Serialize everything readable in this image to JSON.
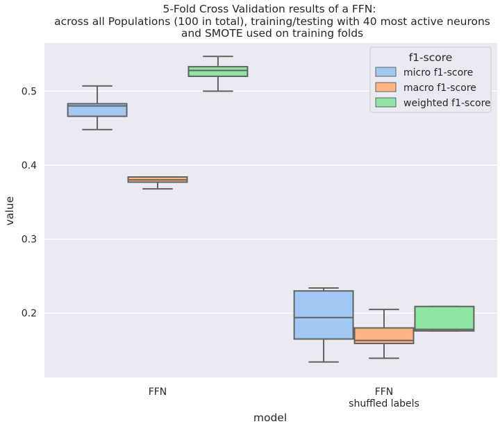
{
  "chart_data": {
    "type": "boxplot",
    "title": [
      "5-Fold Cross Validation results of a FFN:",
      "across all Populations (100 in total), training/testing with 40 most active neurons",
      "and SMOTE used on training folds"
    ],
    "xlabel": "model",
    "ylabel": "value",
    "ylim": [
      0.113,
      0.565
    ],
    "yticks": [
      0.2,
      0.3,
      0.4,
      0.5
    ],
    "ytick_labels": [
      "0.2",
      "0.3",
      "0.4",
      "0.5"
    ],
    "grid": true,
    "categories": [
      [
        "FFN"
      ],
      [
        "FFN",
        "shuffled labels"
      ]
    ],
    "legend": {
      "title": "f1-score",
      "placement": "top-right"
    },
    "series": [
      {
        "name": "micro f1-score",
        "color": "#a1c9f4",
        "boxes": [
          {
            "whisker_low": 0.448,
            "q1": 0.466,
            "median": 0.48,
            "q3": 0.483,
            "whisker_high": 0.507
          },
          {
            "whisker_low": 0.134,
            "q1": 0.165,
            "median": 0.194,
            "q3": 0.23,
            "whisker_high": 0.234
          }
        ]
      },
      {
        "name": "macro f1-score",
        "color": "#ffb482",
        "boxes": [
          {
            "whisker_low": 0.368,
            "q1": 0.377,
            "median": 0.38,
            "q3": 0.384,
            "whisker_high": 0.384
          },
          {
            "whisker_low": 0.139,
            "q1": 0.159,
            "median": 0.163,
            "q3": 0.18,
            "whisker_high": 0.205
          }
        ]
      },
      {
        "name": "weighted f1-score",
        "color": "#8de5a1",
        "boxes": [
          {
            "whisker_low": 0.5,
            "q1": 0.52,
            "median": 0.528,
            "q3": 0.533,
            "whisker_high": 0.547
          },
          {
            "whisker_low": 0.176,
            "q1": 0.176,
            "median": 0.178,
            "q3": 0.209,
            "whisker_high": 0.209
          }
        ]
      }
    ]
  }
}
